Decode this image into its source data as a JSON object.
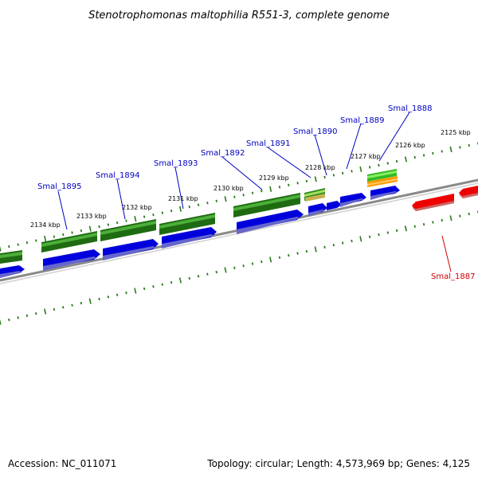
{
  "title": "Stenotrophomonas maltophilia R551-3, complete genome",
  "footer": {
    "accession": "Accession: NC_011071",
    "summary": "Topology: circular; Length: 4,573,969 bp; Genes: 4,125"
  },
  "colors": {
    "forward_label": "#0000c0",
    "reverse_label": "#d00000",
    "tick": "#2a7a1a",
    "backbone": "#808080",
    "gene_green": "#2e8b20",
    "gene_blue": "#0000ee",
    "gene_red": "#ee0000",
    "gene_lightgreen": "#55cc33",
    "gene_orange": "#ff9900",
    "gene_khaki": "#c8b050"
  },
  "ticks": [
    "2125 kbp",
    "2126 kbp",
    "2127 kbp",
    "2128 kbp",
    "2129 kbp",
    "2130 kbp",
    "2131 kbp",
    "2132 kbp",
    "2133 kbp",
    "2134 kbp"
  ],
  "genes_forward": [
    "Smal_1888",
    "Smal_1889",
    "Smal_1890",
    "Smal_1891",
    "Smal_1892",
    "Smal_1893",
    "Smal_1894",
    "Smal_1895"
  ],
  "genes_reverse": [
    "Smal_1887"
  ]
}
